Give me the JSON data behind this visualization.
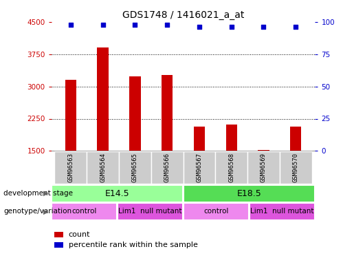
{
  "title": "GDS1748 / 1416021_a_at",
  "samples": [
    "GSM96563",
    "GSM96564",
    "GSM96565",
    "GSM96566",
    "GSM96567",
    "GSM96568",
    "GSM96569",
    "GSM96570"
  ],
  "counts": [
    3150,
    3900,
    3230,
    3260,
    2070,
    2120,
    1520,
    2060
  ],
  "percentiles": [
    98,
    98,
    98,
    98,
    96,
    96,
    96,
    96
  ],
  "ylim_left": [
    1500,
    4500
  ],
  "ylim_right": [
    0,
    100
  ],
  "yticks_left": [
    1500,
    2250,
    3000,
    3750,
    4500
  ],
  "yticks_right": [
    0,
    25,
    50,
    75,
    100
  ],
  "bar_color": "#cc0000",
  "dot_color": "#0000cc",
  "background_color": "#ffffff",
  "development_stages": [
    {
      "label": "E14.5",
      "start": 0,
      "end": 4,
      "color": "#99ff99"
    },
    {
      "label": "E18.5",
      "start": 4,
      "end": 8,
      "color": "#55dd55"
    }
  ],
  "genotype_groups": [
    {
      "label": "control",
      "start": 0,
      "end": 2,
      "color": "#ee88ee"
    },
    {
      "label": "Lim1  null mutant",
      "start": 2,
      "end": 4,
      "color": "#dd55dd"
    },
    {
      "label": "control",
      "start": 4,
      "end": 6,
      "color": "#ee88ee"
    },
    {
      "label": "Lim1  null mutant",
      "start": 6,
      "end": 8,
      "color": "#dd55dd"
    }
  ],
  "left_axis_color": "#cc0000",
  "right_axis_color": "#0000cc",
  "grid_color": "#000000",
  "sample_box_color": "#cccccc",
  "legend_count_color": "#cc0000",
  "legend_pct_color": "#0000cc"
}
